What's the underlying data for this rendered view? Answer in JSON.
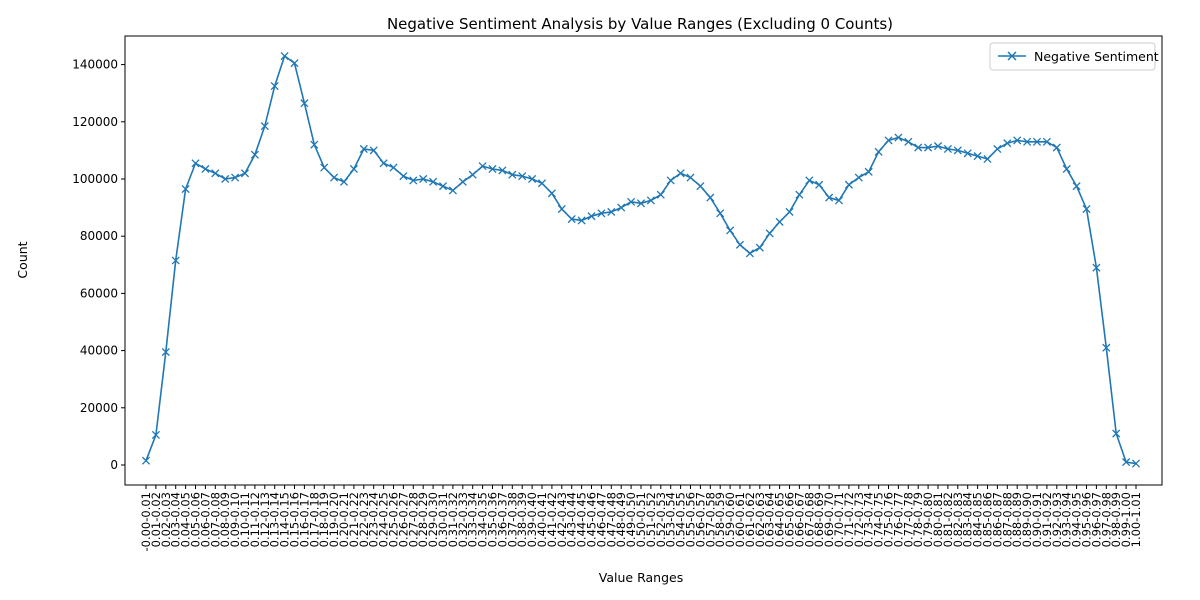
{
  "chart_data": {
    "type": "line",
    "title": "Negative Sentiment Analysis by Value Ranges (Excluding 0 Counts)",
    "xlabel": "Value Ranges",
    "ylabel": "Count",
    "ylim": [
      -7000,
      150000
    ],
    "yticks": [
      "0",
      "20000",
      "40000",
      "60000",
      "80000",
      "100000",
      "120000",
      "140000"
    ],
    "ytick_values": [
      0,
      20000,
      40000,
      60000,
      80000,
      100000,
      120000,
      140000
    ],
    "grid": false,
    "legend_position": "top-right",
    "categories": [
      "-0.00-0.01",
      "0.01-0.02",
      "0.02-0.03",
      "0.03-0.04",
      "0.04-0.05",
      "0.05-0.06",
      "0.06-0.07",
      "0.07-0.08",
      "0.08-0.09",
      "0.09-0.10",
      "0.10-0.11",
      "0.11-0.12",
      "0.12-0.13",
      "0.13-0.14",
      "0.14-0.15",
      "0.15-0.16",
      "0.16-0.17",
      "0.17-0.18",
      "0.18-0.19",
      "0.19-0.20",
      "0.20-0.21",
      "0.21-0.22",
      "0.22-0.23",
      "0.23-0.24",
      "0.24-0.25",
      "0.25-0.26",
      "0.26-0.27",
      "0.27-0.28",
      "0.28-0.29",
      "0.29-0.30",
      "0.30-0.31",
      "0.31-0.32",
      "0.32-0.33",
      "0.33-0.34",
      "0.34-0.35",
      "0.35-0.36",
      "0.36-0.37",
      "0.37-0.38",
      "0.38-0.39",
      "0.39-0.40",
      "0.40-0.41",
      "0.41-0.42",
      "0.42-0.43",
      "0.43-0.44",
      "0.44-0.45",
      "0.45-0.46",
      "0.46-0.47",
      "0.47-0.48",
      "0.48-0.49",
      "0.49-0.50",
      "0.50-0.51",
      "0.51-0.52",
      "0.52-0.53",
      "0.53-0.54",
      "0.54-0.55",
      "0.55-0.56",
      "0.56-0.57",
      "0.57-0.58",
      "0.58-0.59",
      "0.59-0.60",
      "0.60-0.61",
      "0.61-0.62",
      "0.62-0.63",
      "0.63-0.64",
      "0.64-0.65",
      "0.65-0.66",
      "0.66-0.67",
      "0.67-0.68",
      "0.68-0.69",
      "0.69-0.70",
      "0.70-0.71",
      "0.71-0.72",
      "0.72-0.73",
      "0.73-0.74",
      "0.74-0.75",
      "0.75-0.76",
      "0.76-0.77",
      "0.77-0.78",
      "0.78-0.79",
      "0.79-0.80",
      "0.80-0.81",
      "0.81-0.82",
      "0.82-0.83",
      "0.83-0.84",
      "0.84-0.85",
      "0.85-0.86",
      "0.86-0.87",
      "0.87-0.88",
      "0.88-0.89",
      "0.89-0.90",
      "0.90-0.91",
      "0.91-0.92",
      "0.92-0.93",
      "0.93-0.94",
      "0.94-0.95",
      "0.95-0.96",
      "0.96-0.97",
      "0.97-0.98",
      "0.98-0.99",
      "0.99-1.00",
      "1.00-1.01"
    ],
    "series": [
      {
        "name": "Negative Sentiment",
        "color": "#1f77b4",
        "marker": "x",
        "values": [
          1500,
          10500,
          39500,
          71500,
          96500,
          105500,
          103500,
          102000,
          100000,
          100500,
          102000,
          108500,
          118500,
          132500,
          143000,
          140500,
          126500,
          112000,
          104000,
          100500,
          99000,
          103500,
          110500,
          110000,
          105500,
          104000,
          101000,
          99500,
          100000,
          99000,
          97500,
          96000,
          99000,
          101500,
          104500,
          103500,
          103000,
          101500,
          101000,
          100000,
          98500,
          95000,
          89500,
          86000,
          85500,
          87000,
          88000,
          88500,
          90000,
          92000,
          91500,
          92500,
          94500,
          99500,
          102000,
          100500,
          97500,
          93500,
          88000,
          82000,
          77000,
          74000,
          76000,
          81000,
          85000,
          88500,
          94500,
          99500,
          98000,
          93500,
          92500,
          98000,
          100500,
          102500,
          109500,
          113500,
          114500,
          113000,
          111000,
          111000,
          111500,
          110500,
          110000,
          109000,
          108000,
          107000,
          110500,
          112500,
          113500,
          113000,
          113000,
          113000,
          111000,
          103500,
          97500,
          89500,
          69000,
          41000,
          11000,
          1000,
          500
        ]
      }
    ]
  }
}
